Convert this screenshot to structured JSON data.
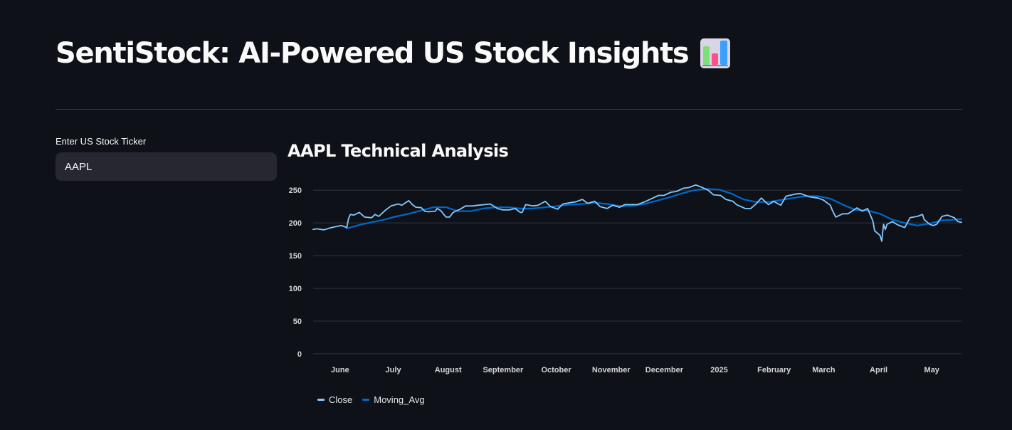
{
  "header": {
    "title": "SentiStock: AI-Powered US Stock Insights",
    "emoji_icon": "bar-chart-emoji"
  },
  "sidebar": {
    "ticker_label": "Enter US Stock Ticker",
    "ticker_value": "AAPL"
  },
  "chart_section": {
    "title": "AAPL Technical Analysis"
  },
  "colors": {
    "background": "#0e1117",
    "close": "#83c9ff",
    "moving_avg": "#0068c9",
    "grid": "#31333f",
    "input_bg": "#262730"
  },
  "chart_data": {
    "type": "line",
    "title": "AAPL Technical Analysis",
    "xlabel": "",
    "ylabel": "",
    "ylim": [
      0,
      260
    ],
    "yticks": [
      0,
      50,
      100,
      150,
      200,
      250
    ],
    "x_range": [
      "2024-05-22",
      "2025-05-23"
    ],
    "xticks": [
      {
        "date": "2024-06-01",
        "label": "June"
      },
      {
        "date": "2024-07-01",
        "label": "July"
      },
      {
        "date": "2024-08-01",
        "label": "August"
      },
      {
        "date": "2024-09-01",
        "label": "September"
      },
      {
        "date": "2024-10-01",
        "label": "October"
      },
      {
        "date": "2024-11-01",
        "label": "November"
      },
      {
        "date": "2024-12-01",
        "label": "December"
      },
      {
        "date": "2025-01-01",
        "label": "2025"
      },
      {
        "date": "2025-02-01",
        "label": "February"
      },
      {
        "date": "2025-03-01",
        "label": "March"
      },
      {
        "date": "2025-04-01",
        "label": "April"
      },
      {
        "date": "2025-05-01",
        "label": "May"
      }
    ],
    "grid": true,
    "legend_position": "bottom-left",
    "series": [
      {
        "name": "Close",
        "color": "#83c9ff",
        "points": [
          [
            "2024-05-22",
            190
          ],
          [
            "2024-05-24",
            191
          ],
          [
            "2024-05-28",
            189.5
          ],
          [
            "2024-05-29",
            190
          ],
          [
            "2024-05-31",
            192
          ],
          [
            "2024-06-03",
            194
          ],
          [
            "2024-06-05",
            195
          ],
          [
            "2024-06-07",
            196
          ],
          [
            "2024-06-10",
            193
          ],
          [
            "2024-06-11",
            207
          ],
          [
            "2024-06-12",
            213
          ],
          [
            "2024-06-14",
            212
          ],
          [
            "2024-06-17",
            216
          ],
          [
            "2024-06-18",
            214
          ],
          [
            "2024-06-20",
            209
          ],
          [
            "2024-06-24",
            208
          ],
          [
            "2024-06-26",
            213
          ],
          [
            "2024-06-28",
            210
          ],
          [
            "2024-07-02",
            220
          ],
          [
            "2024-07-05",
            226
          ],
          [
            "2024-07-09",
            229
          ],
          [
            "2024-07-11",
            227
          ],
          [
            "2024-07-15",
            234
          ],
          [
            "2024-07-17",
            228
          ],
          [
            "2024-07-19",
            224
          ],
          [
            "2024-07-22",
            223.5
          ],
          [
            "2024-07-24",
            218
          ],
          [
            "2024-07-26",
            217
          ],
          [
            "2024-07-30",
            218
          ],
          [
            "2024-07-31",
            222
          ],
          [
            "2024-08-02",
            219
          ],
          [
            "2024-08-05",
            209
          ],
          [
            "2024-08-07",
            209
          ],
          [
            "2024-08-09",
            216
          ],
          [
            "2024-08-13",
            221
          ],
          [
            "2024-08-16",
            226
          ],
          [
            "2024-08-20",
            226
          ],
          [
            "2024-08-23",
            227
          ],
          [
            "2024-08-27",
            228
          ],
          [
            "2024-08-30",
            229
          ],
          [
            "2024-09-03",
            222
          ],
          [
            "2024-09-06",
            220
          ],
          [
            "2024-09-10",
            220
          ],
          [
            "2024-09-13",
            222
          ],
          [
            "2024-09-16",
            216
          ],
          [
            "2024-09-17",
            216
          ],
          [
            "2024-09-19",
            228
          ],
          [
            "2024-09-23",
            226
          ],
          [
            "2024-09-26",
            227
          ],
          [
            "2024-09-30",
            233
          ],
          [
            "2024-10-03",
            225
          ],
          [
            "2024-10-07",
            221
          ],
          [
            "2024-10-10",
            229
          ],
          [
            "2024-10-14",
            231
          ],
          [
            "2024-10-17",
            232
          ],
          [
            "2024-10-21",
            236
          ],
          [
            "2024-10-24",
            230
          ],
          [
            "2024-10-28",
            233
          ],
          [
            "2024-10-31",
            225
          ],
          [
            "2024-11-04",
            222
          ],
          [
            "2024-11-07",
            227
          ],
          [
            "2024-11-11",
            224
          ],
          [
            "2024-11-14",
            228
          ],
          [
            "2024-11-18",
            228
          ],
          [
            "2024-11-21",
            228
          ],
          [
            "2024-11-25",
            232
          ],
          [
            "2024-11-29",
            237
          ],
          [
            "2024-12-03",
            242
          ],
          [
            "2024-12-06",
            242
          ],
          [
            "2024-12-10",
            247
          ],
          [
            "2024-12-13",
            248
          ],
          [
            "2024-12-17",
            253
          ],
          [
            "2024-12-20",
            254
          ],
          [
            "2024-12-24",
            258
          ],
          [
            "2024-12-27",
            255
          ],
          [
            "2024-12-31",
            250
          ],
          [
            "2025-01-03",
            243
          ],
          [
            "2025-01-07",
            242
          ],
          [
            "2025-01-10",
            236
          ],
          [
            "2025-01-14",
            233
          ],
          [
            "2025-01-16",
            228
          ],
          [
            "2025-01-21",
            222
          ],
          [
            "2025-01-24",
            222
          ],
          [
            "2025-01-27",
            229
          ],
          [
            "2025-01-30",
            238
          ],
          [
            "2025-02-03",
            228
          ],
          [
            "2025-02-06",
            233
          ],
          [
            "2025-02-10",
            227
          ],
          [
            "2025-02-13",
            241
          ],
          [
            "2025-02-18",
            244
          ],
          [
            "2025-02-21",
            245
          ],
          [
            "2025-02-26",
            240
          ],
          [
            "2025-03-03",
            238
          ],
          [
            "2025-03-06",
            235
          ],
          [
            "2025-03-10",
            227
          ],
          [
            "2025-03-11",
            220
          ],
          [
            "2025-03-13",
            209
          ],
          [
            "2025-03-17",
            214
          ],
          [
            "2025-03-20",
            214
          ],
          [
            "2025-03-25",
            223
          ],
          [
            "2025-03-28",
            218
          ],
          [
            "2025-03-31",
            222
          ],
          [
            "2025-04-03",
            203
          ],
          [
            "2025-04-04",
            188
          ],
          [
            "2025-04-07",
            181
          ],
          [
            "2025-04-08",
            172
          ],
          [
            "2025-04-09",
            198
          ],
          [
            "2025-04-10",
            190
          ],
          [
            "2025-04-11",
            198
          ],
          [
            "2025-04-14",
            202
          ],
          [
            "2025-04-17",
            197
          ],
          [
            "2025-04-21",
            193
          ],
          [
            "2025-04-24",
            208
          ],
          [
            "2025-04-28",
            210
          ],
          [
            "2025-05-01",
            213
          ],
          [
            "2025-05-02",
            205
          ],
          [
            "2025-05-05",
            198
          ],
          [
            "2025-05-07",
            196
          ],
          [
            "2025-05-09",
            198
          ],
          [
            "2025-05-12",
            210
          ],
          [
            "2025-05-15",
            212
          ],
          [
            "2025-05-19",
            208
          ],
          [
            "2025-05-21",
            202
          ],
          [
            "2025-05-23",
            201
          ]
        ]
      },
      {
        "name": "Moving_Avg",
        "color": "#0068c9",
        "points": [
          [
            "2024-06-10",
            191.5
          ],
          [
            "2024-06-17",
            197
          ],
          [
            "2024-06-24",
            201
          ],
          [
            "2024-07-01",
            205
          ],
          [
            "2024-07-08",
            210
          ],
          [
            "2024-07-15",
            214
          ],
          [
            "2024-07-22",
            219
          ],
          [
            "2024-07-29",
            224
          ],
          [
            "2024-08-05",
            224
          ],
          [
            "2024-08-12",
            218
          ],
          [
            "2024-08-19",
            218
          ],
          [
            "2024-08-26",
            222
          ],
          [
            "2024-09-02",
            224
          ],
          [
            "2024-09-09",
            224
          ],
          [
            "2024-09-16",
            222
          ],
          [
            "2024-09-23",
            222
          ],
          [
            "2024-09-30",
            224
          ],
          [
            "2024-10-07",
            226
          ],
          [
            "2024-10-14",
            228
          ],
          [
            "2024-10-21",
            229
          ],
          [
            "2024-10-28",
            231
          ],
          [
            "2024-11-04",
            229
          ],
          [
            "2024-11-11",
            226
          ],
          [
            "2024-11-18",
            226
          ],
          [
            "2024-11-25",
            229
          ],
          [
            "2024-12-02",
            234
          ],
          [
            "2024-12-09",
            239
          ],
          [
            "2024-12-16",
            245
          ],
          [
            "2024-12-23",
            250
          ],
          [
            "2024-12-30",
            252
          ],
          [
            "2025-01-06",
            251
          ],
          [
            "2025-01-13",
            245
          ],
          [
            "2025-01-20",
            236
          ],
          [
            "2025-01-27",
            232
          ],
          [
            "2025-02-03",
            232
          ],
          [
            "2025-02-10",
            235
          ],
          [
            "2025-02-17",
            238
          ],
          [
            "2025-02-24",
            241
          ],
          [
            "2025-03-03",
            241
          ],
          [
            "2025-03-10",
            237
          ],
          [
            "2025-03-17",
            228
          ],
          [
            "2025-03-24",
            220
          ],
          [
            "2025-03-31",
            219
          ],
          [
            "2025-04-07",
            214
          ],
          [
            "2025-04-14",
            205
          ],
          [
            "2025-04-21",
            200
          ],
          [
            "2025-04-28",
            196
          ],
          [
            "2025-05-05",
            199
          ],
          [
            "2025-05-12",
            204
          ],
          [
            "2025-05-19",
            205
          ],
          [
            "2025-05-23",
            206
          ]
        ]
      }
    ]
  }
}
